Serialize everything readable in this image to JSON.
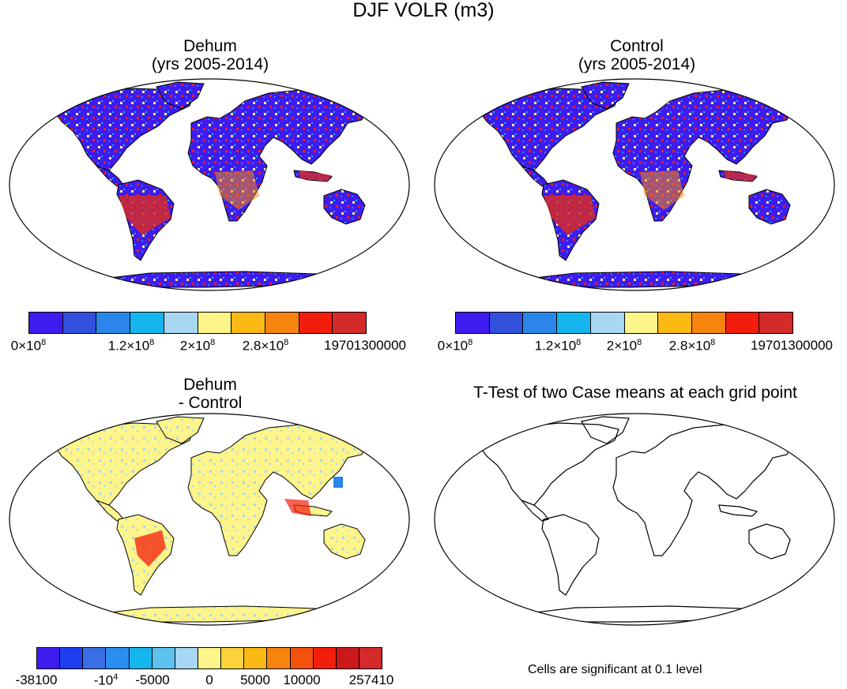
{
  "main_title": "DJF VOLR (m3)",
  "panels": {
    "top_left": {
      "title_line1": "Dehum",
      "title_line2": "(yrs 2005-2014)"
    },
    "top_right": {
      "title_line1": "Control",
      "title_line2": "(yrs 2005-2014)"
    },
    "bottom_left": {
      "title_line1": "Dehum",
      "title_line2": "- Control"
    },
    "bottom_right": {
      "title_line1": "T-Test of two Case means at each grid point"
    }
  },
  "colorbar_top": {
    "colors": [
      "#3e1cf0",
      "#3150dc",
      "#2a86ea",
      "#15b6ee",
      "#a7d7f2",
      "#fdf48a",
      "#fbb914",
      "#f88410",
      "#f31d0b",
      "#d42a2a"
    ],
    "labels": {
      "l0_base": "0×10",
      "l0_exp": "8",
      "l1_base": "1.2×10",
      "l1_exp": "8",
      "l2_base": "2×10",
      "l2_exp": "8",
      "l3_base": "2.8×10",
      "l3_exp": "8",
      "l4": "19701300000"
    }
  },
  "colorbar_diff": {
    "colors": [
      "#3e1cf0",
      "#1e3ef0",
      "#3a6ee6",
      "#2a8ef0",
      "#15b6ee",
      "#5ec2ef",
      "#a7d7f2",
      "#fdf48a",
      "#fdd23a",
      "#fbb914",
      "#f88410",
      "#f5520e",
      "#f31d0b",
      "#cc1818",
      "#d42a2a"
    ],
    "labels": {
      "l0": "-38100",
      "l1_base": "-10",
      "l1_exp": "4",
      "l2": "-5000",
      "l3": "0",
      "l4": "5000",
      "l5": "10000",
      "l6": "257410"
    }
  },
  "ttest_note": "Cells are significant at 0.1 level"
}
